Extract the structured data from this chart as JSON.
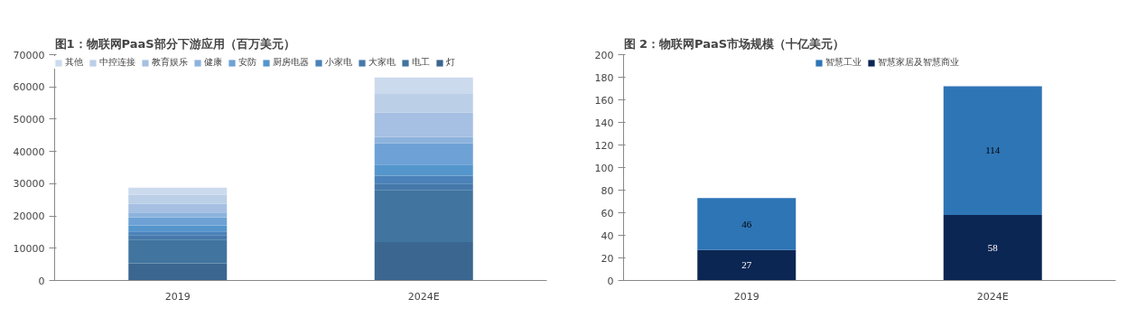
{
  "chart_data": [
    {
      "type": "bar",
      "title": "图1：物联网PaaS部分下游应用（百万美元）",
      "categories": [
        "2019",
        "2024E"
      ],
      "stacked": true,
      "legend": "top",
      "grid": false,
      "ylim": [
        0,
        70000
      ],
      "yticks": [
        0,
        10000,
        20000,
        30000,
        40000,
        50000,
        60000,
        70000
      ],
      "series": [
        {
          "name": "灯",
          "color": "#3a6690",
          "values": [
            5300,
            11900
          ]
        },
        {
          "name": "电工",
          "color": "#41749f",
          "values": [
            7400,
            16200
          ]
        },
        {
          "name": "大家电",
          "color": "#4679ab",
          "values": [
            1400,
            1900
          ]
        },
        {
          "name": "小家电",
          "color": "#4a82b9",
          "values": [
            1100,
            2500
          ]
        },
        {
          "name": "厨房电器",
          "color": "#5496cc",
          "values": [
            1900,
            3400
          ]
        },
        {
          "name": "安防",
          "color": "#6ea2d6",
          "values": [
            2500,
            6600
          ]
        },
        {
          "name": "健康",
          "color": "#8db3dd",
          "values": [
            1500,
            2000
          ]
        },
        {
          "name": "教育娱乐",
          "color": "#a6c0e3",
          "values": [
            2600,
            7600
          ]
        },
        {
          "name": "中控连接",
          "color": "#bbcfe7",
          "values": [
            2900,
            5700
          ]
        },
        {
          "name": "其他",
          "color": "#ccdaee",
          "values": [
            2200,
            5100
          ]
        }
      ]
    },
    {
      "type": "bar",
      "title": "图 2：物联网PaaS市场规模（十亿美元）",
      "categories": [
        "2019",
        "2024E"
      ],
      "stacked": true,
      "legend": "top",
      "grid": false,
      "data_labels": true,
      "ylim": [
        0,
        200
      ],
      "yticks": [
        0,
        20,
        40,
        60,
        80,
        100,
        120,
        140,
        160,
        180,
        200
      ],
      "series": [
        {
          "name": "智慧家居及智慧商业",
          "color": "#0b2653",
          "values": [
            27,
            58
          ]
        },
        {
          "name": "智慧工业",
          "color": "#2e75b6",
          "values": [
            46,
            114
          ]
        }
      ]
    }
  ]
}
